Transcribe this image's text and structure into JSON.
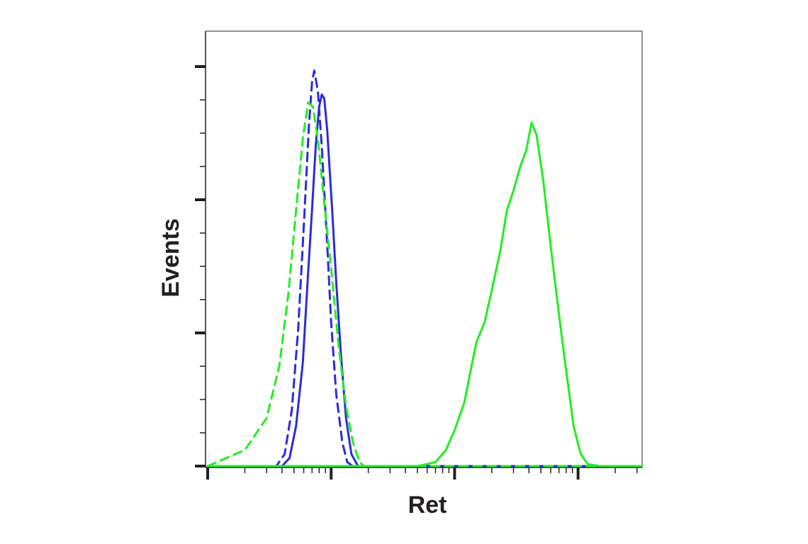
{
  "chart_data": {
    "type": "line",
    "title": "",
    "xlabel": "Ret",
    "ylabel": "Events",
    "x_scale": "log",
    "xlim": [
      1,
      10000000
    ],
    "ylim": [
      0,
      100
    ],
    "grid": false,
    "legend": "none",
    "series": [
      {
        "color": "#2b2bdc",
        "style": "solid",
        "points": [
          [
            2.0,
            0
          ],
          [
            4.0,
            0
          ],
          [
            4.6,
            2
          ],
          [
            5.2,
            10
          ],
          [
            5.9,
            26
          ],
          [
            6.5,
            48
          ],
          [
            7.0,
            64
          ],
          [
            7.5,
            80
          ],
          [
            8.0,
            90
          ],
          [
            8.4,
            93
          ],
          [
            8.8,
            92
          ],
          [
            9.3,
            84
          ],
          [
            10.2,
            64
          ],
          [
            11.0,
            46
          ],
          [
            12.0,
            28
          ],
          [
            13.2,
            12
          ],
          [
            14.6,
            3
          ],
          [
            16.5,
            0
          ],
          [
            1000,
            0
          ],
          [
            10000,
            0
          ]
        ]
      },
      {
        "color": "#2b2bdc",
        "style": "dashed",
        "points": [
          [
            2.0,
            0
          ],
          [
            3.6,
            0
          ],
          [
            4.2,
            3
          ],
          [
            4.8,
            14
          ],
          [
            5.4,
            34
          ],
          [
            6.0,
            60
          ],
          [
            6.6,
            85
          ],
          [
            7.0,
            96
          ],
          [
            7.3,
            99
          ],
          [
            7.8,
            94
          ],
          [
            8.4,
            80
          ],
          [
            9.2,
            58
          ],
          [
            10.0,
            36
          ],
          [
            11.0,
            18
          ],
          [
            12.3,
            6
          ],
          [
            13.5,
            1
          ],
          [
            15.0,
            0
          ],
          [
            1000,
            0
          ],
          [
            10000,
            0
          ]
        ]
      },
      {
        "color": "#22ee22",
        "style": "dashed",
        "points": [
          [
            1.0,
            0
          ],
          [
            2.0,
            4
          ],
          [
            3.0,
            12
          ],
          [
            3.8,
            25
          ],
          [
            4.5,
            43
          ],
          [
            5.2,
            64
          ],
          [
            5.9,
            82
          ],
          [
            6.5,
            91
          ],
          [
            7.1,
            90
          ],
          [
            7.8,
            82
          ],
          [
            8.8,
            66
          ],
          [
            10.1,
            48
          ],
          [
            11.5,
            30
          ],
          [
            13.2,
            15
          ],
          [
            15.0,
            6
          ],
          [
            17.0,
            1
          ],
          [
            18.5,
            0
          ],
          [
            1000,
            0
          ],
          [
            10000,
            0
          ]
        ]
      },
      {
        "color": "#22ee22",
        "style": "solid",
        "points": [
          [
            1.0,
            0
          ],
          [
            50,
            0
          ],
          [
            60,
            0.5
          ],
          [
            70,
            1
          ],
          [
            85,
            4
          ],
          [
            100,
            9
          ],
          [
            120,
            16
          ],
          [
            135,
            24
          ],
          [
            150,
            31
          ],
          [
            175,
            36
          ],
          [
            200,
            44
          ],
          [
            235,
            54
          ],
          [
            265,
            64
          ],
          [
            300,
            69
          ],
          [
            340,
            75
          ],
          [
            380,
            79
          ],
          [
            420,
            86
          ],
          [
            460,
            83
          ],
          [
            520,
            72
          ],
          [
            600,
            55
          ],
          [
            700,
            38
          ],
          [
            800,
            24
          ],
          [
            920,
            10
          ],
          [
            1050,
            3
          ],
          [
            1200,
            0.5
          ],
          [
            1500,
            0
          ],
          [
            100000,
            0
          ],
          [
            10000000,
            0
          ]
        ]
      }
    ]
  }
}
